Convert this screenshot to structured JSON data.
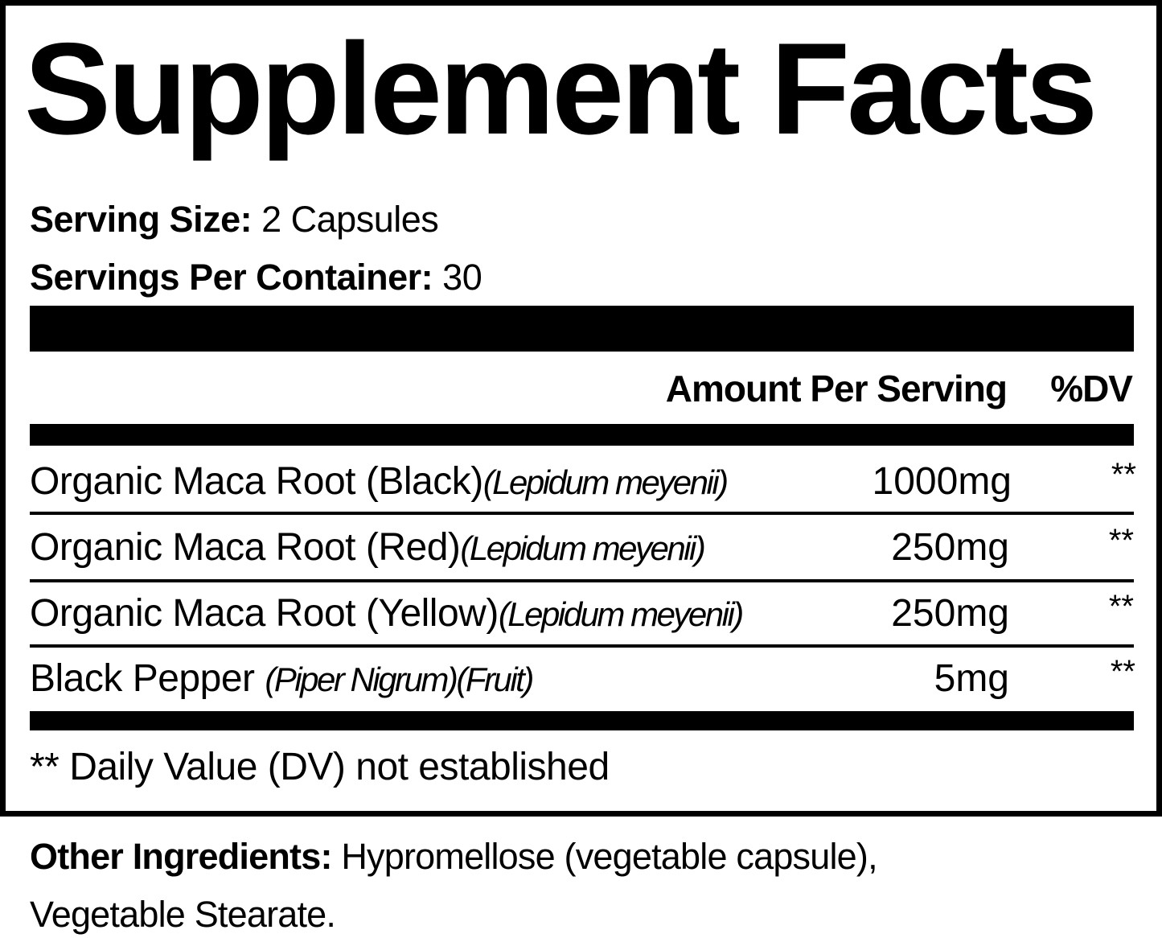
{
  "title": "Supplement Facts",
  "serving_size": {
    "label": "Serving Size:",
    "value": "2 Capsules"
  },
  "servings_per_container": {
    "label": "Servings Per Container:",
    "value": "30"
  },
  "header": {
    "amount": "Amount Per Serving",
    "dv": "%DV"
  },
  "ingredients": [
    {
      "name": "Organic Maca Root (Black)",
      "latin": "(Lepidum meyenii)",
      "amount": "1000mg",
      "dv": "**"
    },
    {
      "name": "Organic Maca Root (Red)",
      "latin": "(Lepidum meyenii)",
      "amount": "250mg",
      "dv": "**"
    },
    {
      "name": "Organic Maca Root (Yellow)",
      "latin": "(Lepidum meyenii)",
      "amount": "250mg",
      "dv": "**"
    },
    {
      "name": "Black Pepper ",
      "latin": "(Piper Nigrum)(Fruit)",
      "amount": "5mg",
      "dv": "**"
    }
  ],
  "footnote": "** Daily Value (DV) not established",
  "other_ingredients": {
    "label": "Other Ingredients:",
    "line1": " Hypromellose (vegetable capsule),",
    "line2": "Vegetable Stearate."
  }
}
